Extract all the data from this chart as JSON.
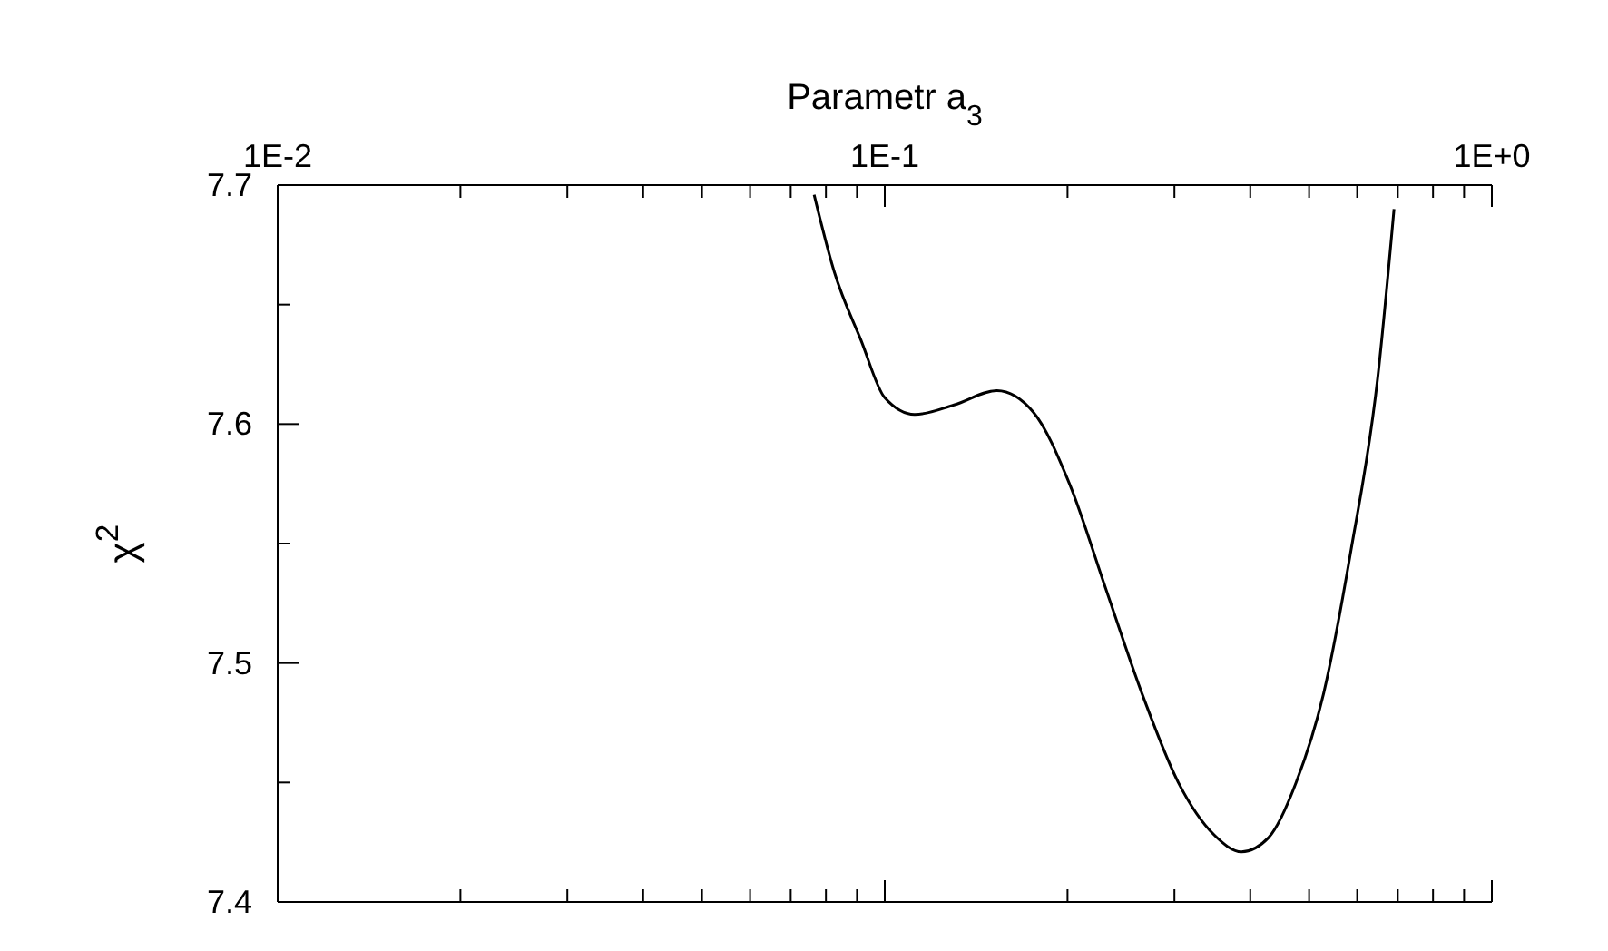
{
  "chart_data": {
    "type": "line",
    "xlabel": "Parametr a$_{3}$",
    "ylabel": "χ$^{2}$",
    "log": "x",
    "marker": "none",
    "line_style": "solid",
    "xlim": [
      0.01,
      1
    ],
    "xticks": [
      {
        "value": 0.01,
        "label": "1E-2"
      },
      {
        "value": 0.02,
        "label": null
      },
      {
        "value": 0.03,
        "label": null
      },
      {
        "value": 0.04,
        "label": null
      },
      {
        "value": 0.05,
        "label": null
      },
      {
        "value": 0.06,
        "label": null
      },
      {
        "value": 0.07,
        "label": null
      },
      {
        "value": 0.08,
        "label": null
      },
      {
        "value": 0.09,
        "label": null
      },
      {
        "value": 0.1,
        "label": "1E-1"
      },
      {
        "value": 0.2,
        "label": null
      },
      {
        "value": 0.3,
        "label": null
      },
      {
        "value": 0.4,
        "label": null
      },
      {
        "value": 0.5,
        "label": null
      },
      {
        "value": 0.6,
        "label": null
      },
      {
        "value": 0.7,
        "label": null
      },
      {
        "value": 0.8,
        "label": null
      },
      {
        "value": 0.9,
        "label": null
      },
      {
        "value": 1,
        "label": "1E+0"
      }
    ],
    "ylim": [
      7.4,
      7.7
    ],
    "yticks": [
      7.4,
      {
        "value": 7.45,
        "label": null
      },
      7.5,
      {
        "value": 7.55,
        "label": null
      },
      7.6,
      {
        "value": 7.65,
        "label": null
      },
      7.7
    ],
    "x": [
      0.0765,
      0.0825,
      0.0914,
      0.1,
      0.112,
      0.13,
      0.153,
      0.1757,
      0.2015,
      0.2313,
      0.2655,
      0.3045,
      0.349,
      0.387,
      0.429,
      0.476,
      0.528,
      0.585,
      0.649,
      0.69
    ],
    "series": [
      {
        "color": "#000000",
        "values": [
          7.696,
          7.664,
          7.635,
          7.611,
          7.604,
          7.608,
          7.614,
          7.605,
          7.575,
          7.531,
          7.487,
          7.45,
          7.428,
          7.421,
          7.427,
          7.45,
          7.487,
          7.546,
          7.62,
          7.69
        ]
      }
    ]
  }
}
